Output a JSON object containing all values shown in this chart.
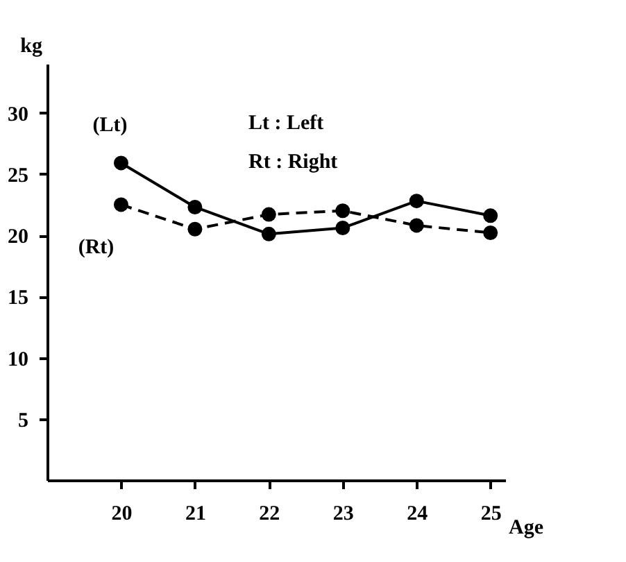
{
  "chart_data": {
    "type": "line",
    "xlabel": "Age",
    "ylabel": "kg",
    "x": [
      20,
      21,
      22,
      23,
      24,
      25
    ],
    "xlim": [
      19,
      25.2
    ],
    "xticks": [
      20,
      21,
      22,
      23,
      24,
      25
    ],
    "ylim": [
      0,
      34
    ],
    "yticks": [
      5,
      10,
      15,
      20,
      25,
      30
    ],
    "marker": "circle",
    "grid": false,
    "series": [
      {
        "name": "(Lt)",
        "color": "#000000",
        "line_style": "solid",
        "values": [
          25.9,
          22.3,
          20.1,
          20.6,
          22.8,
          21.6
        ]
      },
      {
        "name": "(Rt)",
        "color": "#000000",
        "line_style": "dashed",
        "values": [
          22.5,
          20.5,
          21.7,
          22.0,
          20.8,
          20.2
        ]
      }
    ],
    "annotations": [
      "Lt : Left",
      "Rt : Right"
    ]
  }
}
